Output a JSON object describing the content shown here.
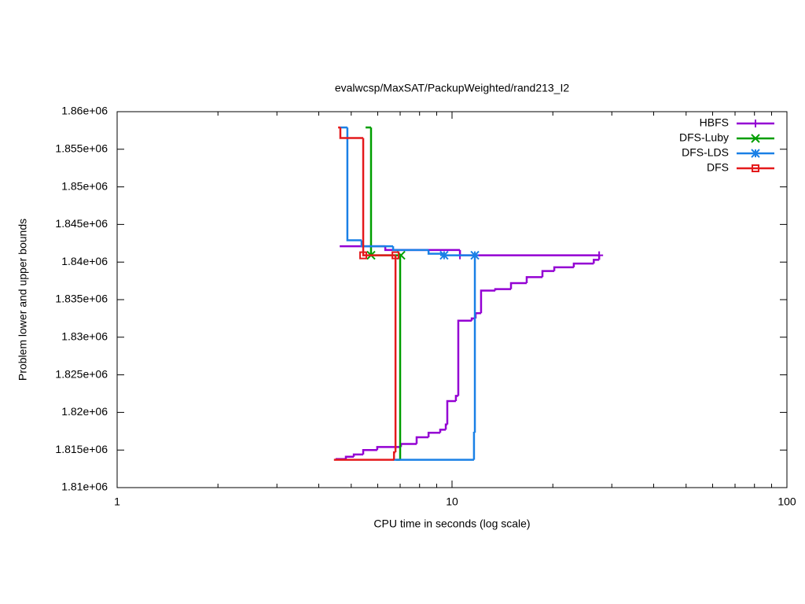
{
  "chart_data": {
    "type": "line",
    "step": true,
    "title": "evalwcsp/MaxSAT/PackupWeighted/rand213_I2",
    "xlabel": "CPU time in seconds (log scale)",
    "ylabel": "Problem lower and upper bounds",
    "xscale": "log",
    "xlim": [
      1,
      100
    ],
    "xticks": [
      1,
      10,
      100
    ],
    "ylim": [
      1810000,
      1860000
    ],
    "yticks": [
      {
        "value": 1810000,
        "label": "1.81e+06"
      },
      {
        "value": 1815000,
        "label": "1.815e+06"
      },
      {
        "value": 1820000,
        "label": "1.82e+06"
      },
      {
        "value": 1825000,
        "label": "1.825e+06"
      },
      {
        "value": 1830000,
        "label": "1.83e+06"
      },
      {
        "value": 1835000,
        "label": "1.835e+06"
      },
      {
        "value": 1840000,
        "label": "1.84e+06"
      },
      {
        "value": 1845000,
        "label": "1.845e+06"
      },
      {
        "value": 1850000,
        "label": "1.85e+06"
      },
      {
        "value": 1855000,
        "label": "1.855e+06"
      },
      {
        "value": 1860000,
        "label": "1.86e+06"
      }
    ],
    "legend": "top-right",
    "series": [
      {
        "name": "HBFS",
        "color": "#9400d3",
        "marker": "plus",
        "x": [
          4.62,
          6.32,
          10.56,
          27.5,
          null,
          4.49,
          4.82,
          5.09,
          5.43,
          5.98,
          7.04,
          7.84,
          8.51,
          9.22,
          9.58,
          9.68,
          10.27,
          10.44,
          11.45,
          11.76,
          12.21,
          13.46,
          15.0,
          16.71,
          18.62,
          20.2,
          23.1,
          26.5,
          27.5
        ],
        "values": [
          1842100,
          1841600,
          1840900,
          1840900,
          null,
          1813800,
          1814100,
          1814400,
          1815000,
          1815400,
          1815800,
          1816700,
          1817300,
          1817700,
          1818400,
          1821500,
          1822200,
          1832200,
          1832500,
          1833200,
          1836200,
          1836400,
          1837200,
          1838000,
          1838800,
          1839300,
          1839800,
          1840300,
          1840900
        ]
      },
      {
        "name": "DFS-Luby",
        "color": "#009e00",
        "marker": "cross",
        "x": [
          5.52,
          5.73,
          7.04,
          null,
          6.81,
          7.0
        ],
        "values": [
          1857900,
          1840900,
          1840900,
          null,
          1813700,
          1840900
        ]
      },
      {
        "name": "DFS-LDS",
        "color": "#1a80e6",
        "marker": "star",
        "x": [
          4.64,
          4.87,
          5.37,
          6.67,
          8.51,
          9.47,
          11.7,
          null,
          6.67,
          11.63,
          11.7
        ],
        "values": [
          1857900,
          1842900,
          1842100,
          1841600,
          1841100,
          1840900,
          1840900,
          null,
          1813700,
          1817300,
          1840900
        ]
      },
      {
        "name": "DFS",
        "color": "#e41a1c",
        "marker": "box",
        "x": [
          4.57,
          4.64,
          5.43,
          6.78,
          null,
          4.44,
          6.71,
          6.78
        ],
        "values": [
          1857900,
          1856500,
          1840900,
          1840900,
          null,
          1813700,
          1814700,
          1840900
        ]
      }
    ]
  }
}
